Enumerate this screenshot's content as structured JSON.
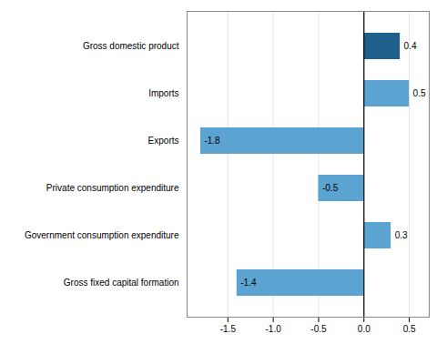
{
  "chart_data": {
    "type": "bar",
    "orientation": "horizontal",
    "categories": [
      "Gross fixed capital formation",
      "Government consumption expenditure",
      "Private consumption expenditure",
      "Exports",
      "Imports",
      "Gross domestic product"
    ],
    "values": [
      -1.4,
      0.3,
      -0.5,
      -1.8,
      0.5,
      0.4
    ],
    "colors": [
      "#5ba3d0",
      "#5ba3d0",
      "#5ba3d0",
      "#5ba3d0",
      "#5ba3d0",
      "#1f5f8b"
    ],
    "xlim": [
      -1.95,
      0.72
    ],
    "xticks": [
      -1.5,
      {
        "value": -1,
        "label": "-1.0"
      },
      -0.5,
      {
        "value": 0,
        "label": "0.0"
      },
      0.5
    ],
    "grid": true,
    "data_labels": true
  }
}
